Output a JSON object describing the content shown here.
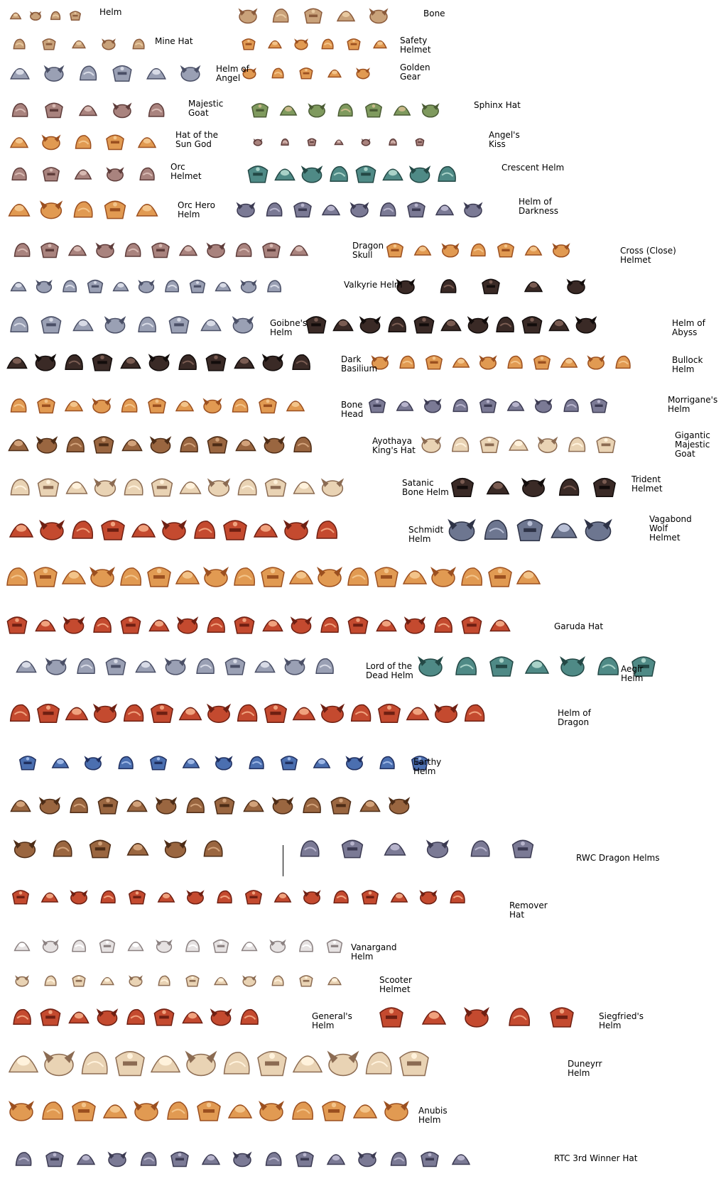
{
  "sheet": {
    "labels": [
      "Helm",
      "Bone",
      "Mine Hat",
      "Safety\nHelmet",
      "Helm of\nAngel",
      "Golden\nGear",
      "Majestic\nGoat",
      "Sphinx Hat",
      "Hat of the\nSun God",
      "Angel's\nKiss",
      "Orc\nHelmet",
      "Crescent Helm",
      "Orc Hero\nHelm",
      "Helm of\nDarkness",
      "Dragon\nSkull",
      "Cross (Close)\nHelmet",
      "Valkyrie Helm",
      "Goibne's\nHelm",
      "Helm of\nAbyss",
      "Dark\nBasilium",
      "Bullock\nHelm",
      "Bone\nHead",
      "Morrigane's\nHelm",
      "Ayothaya\nKing's Hat",
      "Gigantic\nMajestic\nGoat",
      "Satanic\nBone Helm",
      "Trident\nHelmet",
      "Schmidt\nHelm",
      "Vagabond\nWolf\nHelmet",
      "Garuda Hat",
      "Lord of the\nDead Helm",
      "Aegir\nHelm",
      "Helm of\nDragon",
      "Earthy\nHelm",
      "RWC Dragon Helms",
      "Remover\nHat",
      "Vanargand\nHelm",
      "Scooter\nHelmet",
      "General's\nHelm",
      "Siegfried's\nHelm",
      "Duneyrr\nHelm",
      "Anubis\nHelm",
      "RTC 3rd Winner Hat"
    ]
  }
}
